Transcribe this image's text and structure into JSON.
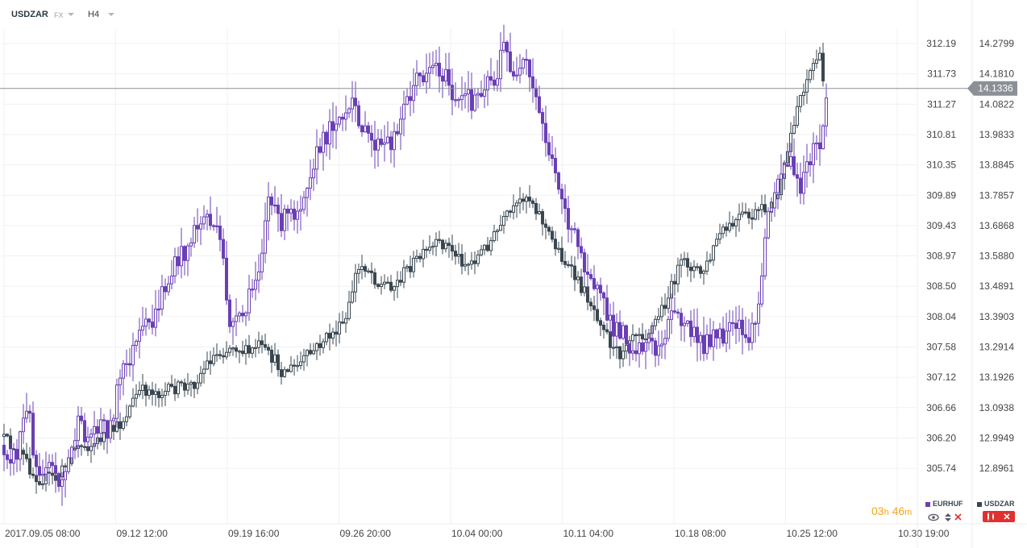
{
  "header": {
    "symbol": "USDZAR",
    "market": "FX",
    "timeframe": "H4"
  },
  "price_badge": "14.1336",
  "timer": {
    "hours": "03",
    "h_unit": "h",
    "minutes": "46",
    "m_unit": "m"
  },
  "legend": [
    {
      "name": "EURHUF",
      "color": "#6a3fb5"
    },
    {
      "name": "USDZAR",
      "color": "#3a4750"
    }
  ],
  "chart_data": {
    "type": "candlestick",
    "x_labels": [
      "2017.09.05 08:00",
      "09.12 12:00",
      "09.19 16:00",
      "09.26 20:00",
      "10.04 00:00",
      "10.11 04:00",
      "10.18 08:00",
      "10.25 12:00",
      "10.30 19:00"
    ],
    "left_axis_labels": [
      "312.19",
      "311.73",
      "311.27",
      "310.81",
      "310.35",
      "309.89",
      "309.43",
      "308.97",
      "308.50",
      "308.04",
      "307.58",
      "307.12",
      "306.66",
      "306.20",
      "305.74"
    ],
    "right_axis_labels": [
      "14.2799",
      "14.1810",
      "14.0822",
      "13.9833",
      "13.8845",
      "13.7857",
      "13.6868",
      "13.5880",
      "13.4891",
      "13.3903",
      "13.2914",
      "13.1926",
      "13.0938",
      "12.9949",
      "12.8961"
    ],
    "series": [
      {
        "name": "EURHUF",
        "axis": "left",
        "approx_path": [
          [
            0,
            306.1
          ],
          [
            10,
            306.0
          ],
          [
            20,
            305.9
          ],
          [
            28,
            306.5
          ],
          [
            36,
            306.6
          ],
          [
            44,
            305.8
          ],
          [
            52,
            305.7
          ],
          [
            60,
            306.0
          ],
          [
            68,
            305.6
          ],
          [
            78,
            305.6
          ],
          [
            86,
            305.9
          ],
          [
            96,
            306.4
          ],
          [
            110,
            306.2
          ],
          [
            124,
            306.5
          ],
          [
            136,
            306.3
          ],
          [
            146,
            307.0
          ],
          [
            156,
            307.3
          ],
          [
            164,
            307.5
          ],
          [
            172,
            307.7
          ],
          [
            182,
            307.9
          ],
          [
            192,
            308.0
          ],
          [
            200,
            308.4
          ],
          [
            210,
            308.6
          ],
          [
            220,
            308.9
          ],
          [
            232,
            309.1
          ],
          [
            244,
            309.4
          ],
          [
            256,
            309.6
          ],
          [
            266,
            309.4
          ],
          [
            276,
            309.0
          ],
          [
            284,
            308.0
          ],
          [
            292,
            307.9
          ],
          [
            304,
            308.1
          ],
          [
            316,
            308.6
          ],
          [
            324,
            309.0
          ],
          [
            332,
            309.9
          ],
          [
            340,
            309.6
          ],
          [
            350,
            309.5
          ],
          [
            360,
            309.6
          ],
          [
            370,
            309.7
          ],
          [
            378,
            310.0
          ],
          [
            388,
            310.4
          ],
          [
            398,
            310.6
          ],
          [
            408,
            310.9
          ],
          [
            418,
            311.1
          ],
          [
            428,
            311.0
          ],
          [
            440,
            311.3
          ],
          [
            452,
            310.8
          ],
          [
            462,
            310.7
          ],
          [
            474,
            310.6
          ],
          [
            486,
            310.7
          ],
          [
            494,
            311.0
          ],
          [
            504,
            311.3
          ],
          [
            514,
            311.6
          ],
          [
            524,
            311.7
          ],
          [
            534,
            311.9
          ],
          [
            546,
            311.8
          ],
          [
            556,
            311.6
          ],
          [
            566,
            311.2
          ],
          [
            576,
            311.4
          ],
          [
            586,
            311.3
          ],
          [
            596,
            311.5
          ],
          [
            606,
            311.7
          ],
          [
            616,
            311.6
          ],
          [
            624,
            312.2
          ],
          [
            632,
            311.9
          ],
          [
            642,
            311.6
          ],
          [
            652,
            311.9
          ],
          [
            660,
            311.5
          ],
          [
            668,
            311.2
          ],
          [
            676,
            310.8
          ],
          [
            686,
            310.3
          ],
          [
            696,
            310.0
          ],
          [
            704,
            309.5
          ],
          [
            714,
            309.2
          ],
          [
            724,
            308.9
          ],
          [
            734,
            308.7
          ],
          [
            744,
            308.3
          ],
          [
            752,
            308.1
          ],
          [
            762,
            307.8
          ],
          [
            772,
            307.9
          ],
          [
            782,
            307.6
          ],
          [
            792,
            307.6
          ],
          [
            804,
            307.7
          ],
          [
            814,
            307.5
          ],
          [
            824,
            307.8
          ],
          [
            834,
            308.1
          ],
          [
            844,
            308.0
          ],
          [
            854,
            307.9
          ],
          [
            864,
            307.7
          ],
          [
            874,
            307.6
          ],
          [
            884,
            307.8
          ],
          [
            894,
            307.7
          ],
          [
            904,
            307.8
          ],
          [
            914,
            307.9
          ],
          [
            924,
            307.7
          ],
          [
            934,
            307.8
          ],
          [
            944,
            308.5
          ],
          [
            952,
            309.6
          ],
          [
            960,
            310.0
          ],
          [
            970,
            310.3
          ],
          [
            980,
            310.4
          ],
          [
            990,
            310.0
          ],
          [
            1000,
            310.2
          ],
          [
            1008,
            310.6
          ],
          [
            1016,
            310.6
          ],
          [
            1022,
            311.0
          ],
          [
            1026,
            311.4
          ]
        ]
      },
      {
        "name": "USDZAR",
        "axis": "right",
        "approx_path": [
          [
            0,
            13.0
          ],
          [
            10,
            12.98
          ],
          [
            20,
            12.95
          ],
          [
            30,
            12.93
          ],
          [
            40,
            12.88
          ],
          [
            50,
            12.86
          ],
          [
            60,
            12.87
          ],
          [
            70,
            12.86
          ],
          [
            80,
            12.9
          ],
          [
            90,
            12.96
          ],
          [
            100,
            12.97
          ],
          [
            110,
            12.97
          ],
          [
            120,
            12.98
          ],
          [
            130,
            13.01
          ],
          [
            140,
            13.02
          ],
          [
            150,
            13.04
          ],
          [
            160,
            13.09
          ],
          [
            170,
            13.14
          ],
          [
            180,
            13.15
          ],
          [
            190,
            13.15
          ],
          [
            200,
            13.14
          ],
          [
            210,
            13.15
          ],
          [
            220,
            13.16
          ],
          [
            230,
            13.16
          ],
          [
            240,
            13.17
          ],
          [
            250,
            13.21
          ],
          [
            260,
            13.25
          ],
          [
            270,
            13.27
          ],
          [
            280,
            13.28
          ],
          [
            290,
            13.3
          ],
          [
            300,
            13.28
          ],
          [
            310,
            13.27
          ],
          [
            320,
            13.3
          ],
          [
            330,
            13.27
          ],
          [
            340,
            13.25
          ],
          [
            350,
            13.21
          ],
          [
            360,
            13.22
          ],
          [
            370,
            13.23
          ],
          [
            380,
            13.26
          ],
          [
            390,
            13.28
          ],
          [
            400,
            13.31
          ],
          [
            410,
            13.33
          ],
          [
            420,
            13.35
          ],
          [
            430,
            13.38
          ],
          [
            440,
            13.52
          ],
          [
            450,
            13.56
          ],
          [
            460,
            13.54
          ],
          [
            470,
            13.49
          ],
          [
            480,
            13.5
          ],
          [
            490,
            13.49
          ],
          [
            500,
            13.53
          ],
          [
            510,
            13.56
          ],
          [
            520,
            13.58
          ],
          [
            530,
            13.6
          ],
          [
            540,
            13.62
          ],
          [
            550,
            13.63
          ],
          [
            560,
            13.61
          ],
          [
            570,
            13.58
          ],
          [
            580,
            13.56
          ],
          [
            590,
            13.58
          ],
          [
            600,
            13.61
          ],
          [
            610,
            13.64
          ],
          [
            620,
            13.68
          ],
          [
            630,
            13.72
          ],
          [
            640,
            13.74
          ],
          [
            650,
            13.79
          ],
          [
            660,
            13.77
          ],
          [
            670,
            13.72
          ],
          [
            680,
            13.66
          ],
          [
            690,
            13.62
          ],
          [
            700,
            13.57
          ],
          [
            710,
            13.53
          ],
          [
            720,
            13.49
          ],
          [
            730,
            13.45
          ],
          [
            740,
            13.4
          ],
          [
            750,
            13.36
          ],
          [
            760,
            13.28
          ],
          [
            770,
            13.27
          ],
          [
            780,
            13.33
          ],
          [
            790,
            13.35
          ],
          [
            800,
            13.33
          ],
          [
            810,
            13.36
          ],
          [
            820,
            13.41
          ],
          [
            830,
            13.46
          ],
          [
            840,
            13.54
          ],
          [
            850,
            13.57
          ],
          [
            860,
            13.55
          ],
          [
            870,
            13.53
          ],
          [
            880,
            13.57
          ],
          [
            890,
            13.65
          ],
          [
            900,
            13.67
          ],
          [
            910,
            13.69
          ],
          [
            920,
            13.72
          ],
          [
            930,
            13.71
          ],
          [
            940,
            13.73
          ],
          [
            950,
            13.74
          ],
          [
            960,
            13.76
          ],
          [
            970,
            13.83
          ],
          [
            980,
            13.97
          ],
          [
            990,
            14.09
          ],
          [
            1000,
            14.16
          ],
          [
            1010,
            14.22
          ],
          [
            1016,
            14.25
          ],
          [
            1020,
            14.16
          ],
          [
            1024,
            14.14
          ]
        ]
      }
    ],
    "current_price": 14.1336,
    "grid": true
  }
}
